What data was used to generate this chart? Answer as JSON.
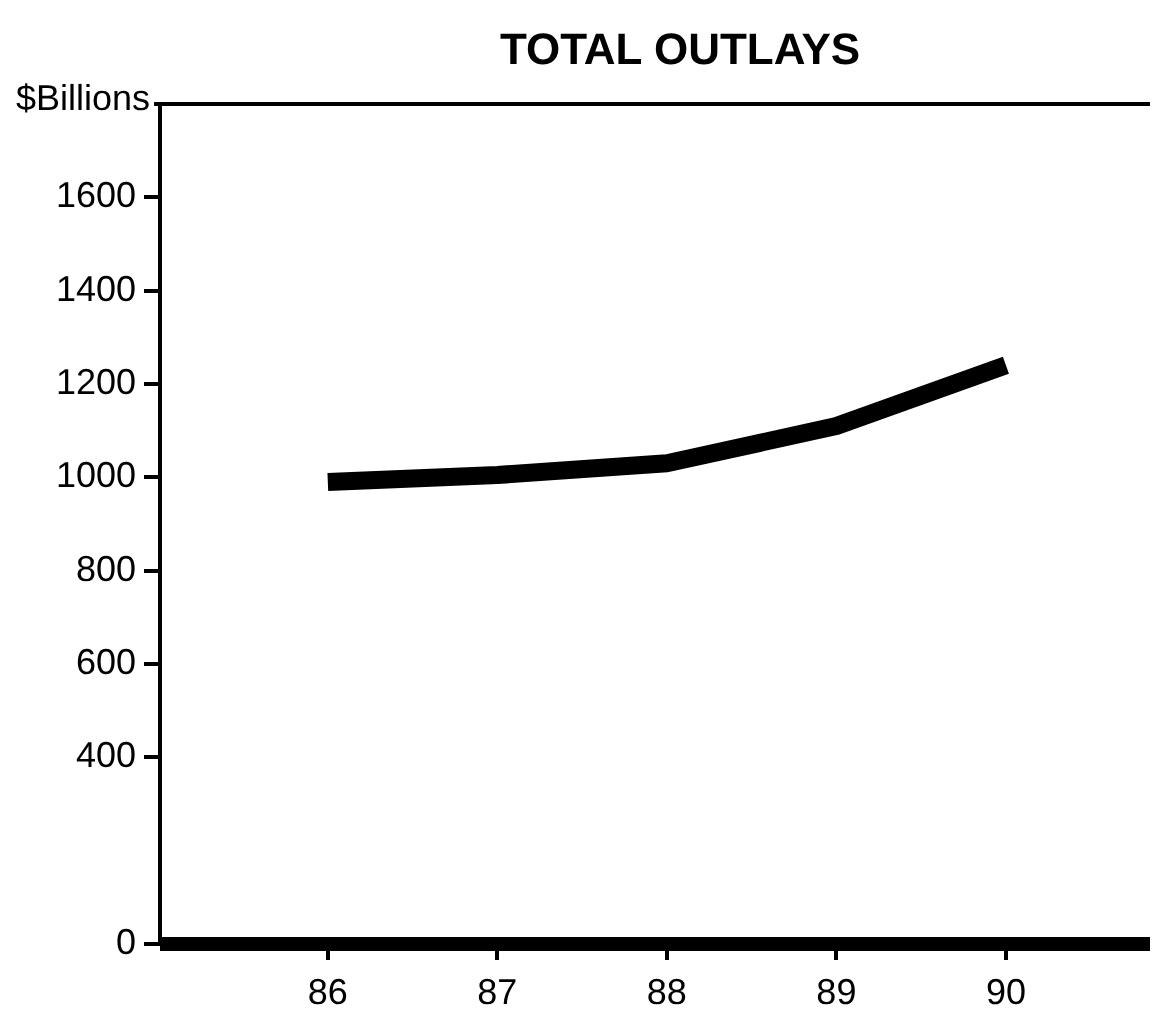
{
  "chart_data": {
    "type": "line",
    "title": "TOTAL OUTLAYS",
    "ylabel": "$Billions",
    "categories": [
      "86",
      "87",
      "88",
      "89",
      "90"
    ],
    "values": [
      990,
      1005,
      1030,
      1110,
      1240
    ],
    "color": "#000000",
    "ylim": [
      0,
      1800
    ],
    "yticks": [
      0,
      400,
      600,
      800,
      1000,
      1200,
      1400,
      1600
    ]
  }
}
